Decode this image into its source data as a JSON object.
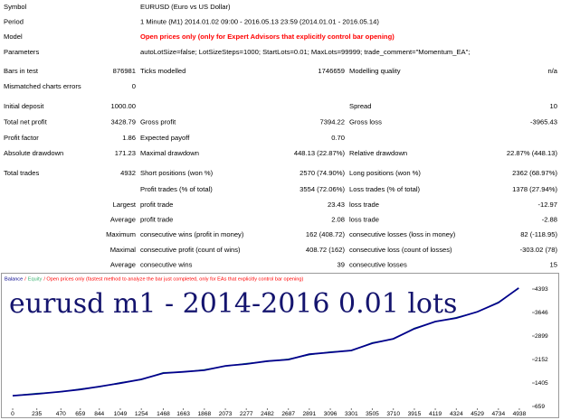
{
  "report": {
    "header": [
      {
        "label": "Symbol",
        "value": "EURUSD (Euro vs US Dollar)"
      },
      {
        "label": "Period",
        "value": "1 Minute (M1) 2014.01.02 09:00 - 2016.05.13 23:59 (2014.01.01 - 2016.05.14)"
      },
      {
        "label": "Model",
        "value": "Open prices only (only for Expert Advisors that explicitly control bar opening)",
        "color": "#ff0000"
      },
      {
        "label": "Parameters",
        "value": "autoLotSize=false; LotSizeSteps=1000; StartLots=0.01; MaxLots=99999; trade_comment=\"Momentum_EA\";"
      }
    ],
    "stats": [
      {
        "a": "Bars in test",
        "av": "876981",
        "b": "Ticks modelled",
        "bv": "1746659",
        "c": "Modelling quality",
        "cv": "n/a"
      },
      {
        "a": "Mismatched charts errors",
        "av": "0"
      },
      {
        "a": "Initial deposit",
        "av": "1000.00",
        "c": "Spread",
        "cv": "10"
      },
      {
        "a": "Total net profit",
        "av": "3428.79",
        "b": "Gross profit",
        "bv": "7394.22",
        "c": "Gross loss",
        "cv": "-3965.43"
      },
      {
        "a": "Profit factor",
        "av": "1.86",
        "b": "Expected payoff",
        "bv": "0.70"
      },
      {
        "a": "Absolute drawdown",
        "av": "171.23",
        "b": "Maximal drawdown",
        "bv": "448.13 (22.87%)",
        "c": "Relative drawdown",
        "cv": "22.87% (448.13)"
      },
      {
        "a": "Total trades",
        "av": "4932",
        "b": "Short positions (won %)",
        "bv": "2570 (74.90%)",
        "c": "Long positions (won %)",
        "cv": "2362 (68.97%)"
      },
      {
        "b": "Profit trades (% of total)",
        "bv": "3554 (72.06%)",
        "c": "Loss trades (% of total)",
        "cv": "1378 (27.94%)"
      },
      {
        "p": "Largest",
        "b": "profit trade",
        "bv": "23.43",
        "c": "loss trade",
        "cv": "-12.97"
      },
      {
        "p": "Average",
        "b": "profit trade",
        "bv": "2.08",
        "c": "loss trade",
        "cv": "-2.88"
      },
      {
        "p": "Maximum",
        "b": "consecutive wins (profit in money)",
        "bv": "162 (408.72)",
        "c": "consecutive losses (loss in money)",
        "cv": "82 (-118.95)"
      },
      {
        "p": "Maximal",
        "b": "consecutive profit (count of wins)",
        "bv": "408.72 (162)",
        "c": "consecutive loss (count of losses)",
        "cv": "-303.02 (78)"
      },
      {
        "p": "Average",
        "b": "consecutive wins",
        "bv": "39",
        "c": "consecutive losses",
        "cv": "15"
      }
    ]
  },
  "chart_data": {
    "type": "line",
    "annotation": "eurusd m1 - 2014-2016 0.01 lots",
    "legend": [
      "Balance",
      "/",
      "Equity",
      "/ Open prices only (fastest method to analyze the bar just completed, only for EAs that explicitly control bar opening)"
    ],
    "x": [
      0,
      235,
      470,
      659,
      844,
      1049,
      1254,
      1468,
      1663,
      1868,
      2073,
      2277,
      2482,
      2687,
      2891,
      3096,
      3301,
      3505,
      3710,
      3915,
      4119,
      4324,
      4529,
      4734,
      4932
    ],
    "series": [
      {
        "name": "Balance",
        "color": "#00008b",
        "values": [
          1000,
          1060,
          1130,
          1200,
          1290,
          1400,
          1520,
          1720,
          1760,
          1810,
          1950,
          2010,
          2100,
          2150,
          2320,
          2380,
          2440,
          2670,
          2810,
          3130,
          3360,
          3470,
          3670,
          3960,
          4429
        ]
      },
      {
        "name": "Equity",
        "color": "#3cb371",
        "values": [
          1000,
          1080,
          1120,
          1220,
          1280,
          1420,
          1510,
          1740,
          1750,
          1830,
          1940,
          2030,
          2090,
          2170,
          2300,
          2400,
          2430,
          2690,
          2800,
          3150,
          3350,
          3490,
          3660,
          3980,
          4410
        ]
      }
    ],
    "xlim": [
      -106,
      5062
    ],
    "ylim": [
      602,
      4824
    ],
    "xticks": [
      0,
      235,
      470,
      659,
      844,
      1049,
      1254,
      1468,
      1663,
      1868,
      2073,
      2277,
      2482,
      2687,
      2891,
      3096,
      3301,
      3505,
      3710,
      3915,
      4119,
      4324,
      4529,
      4734,
      4938
    ],
    "yticks": [
      659,
      1405,
      2152,
      2899,
      3646,
      4393
    ],
    "grid": false
  }
}
